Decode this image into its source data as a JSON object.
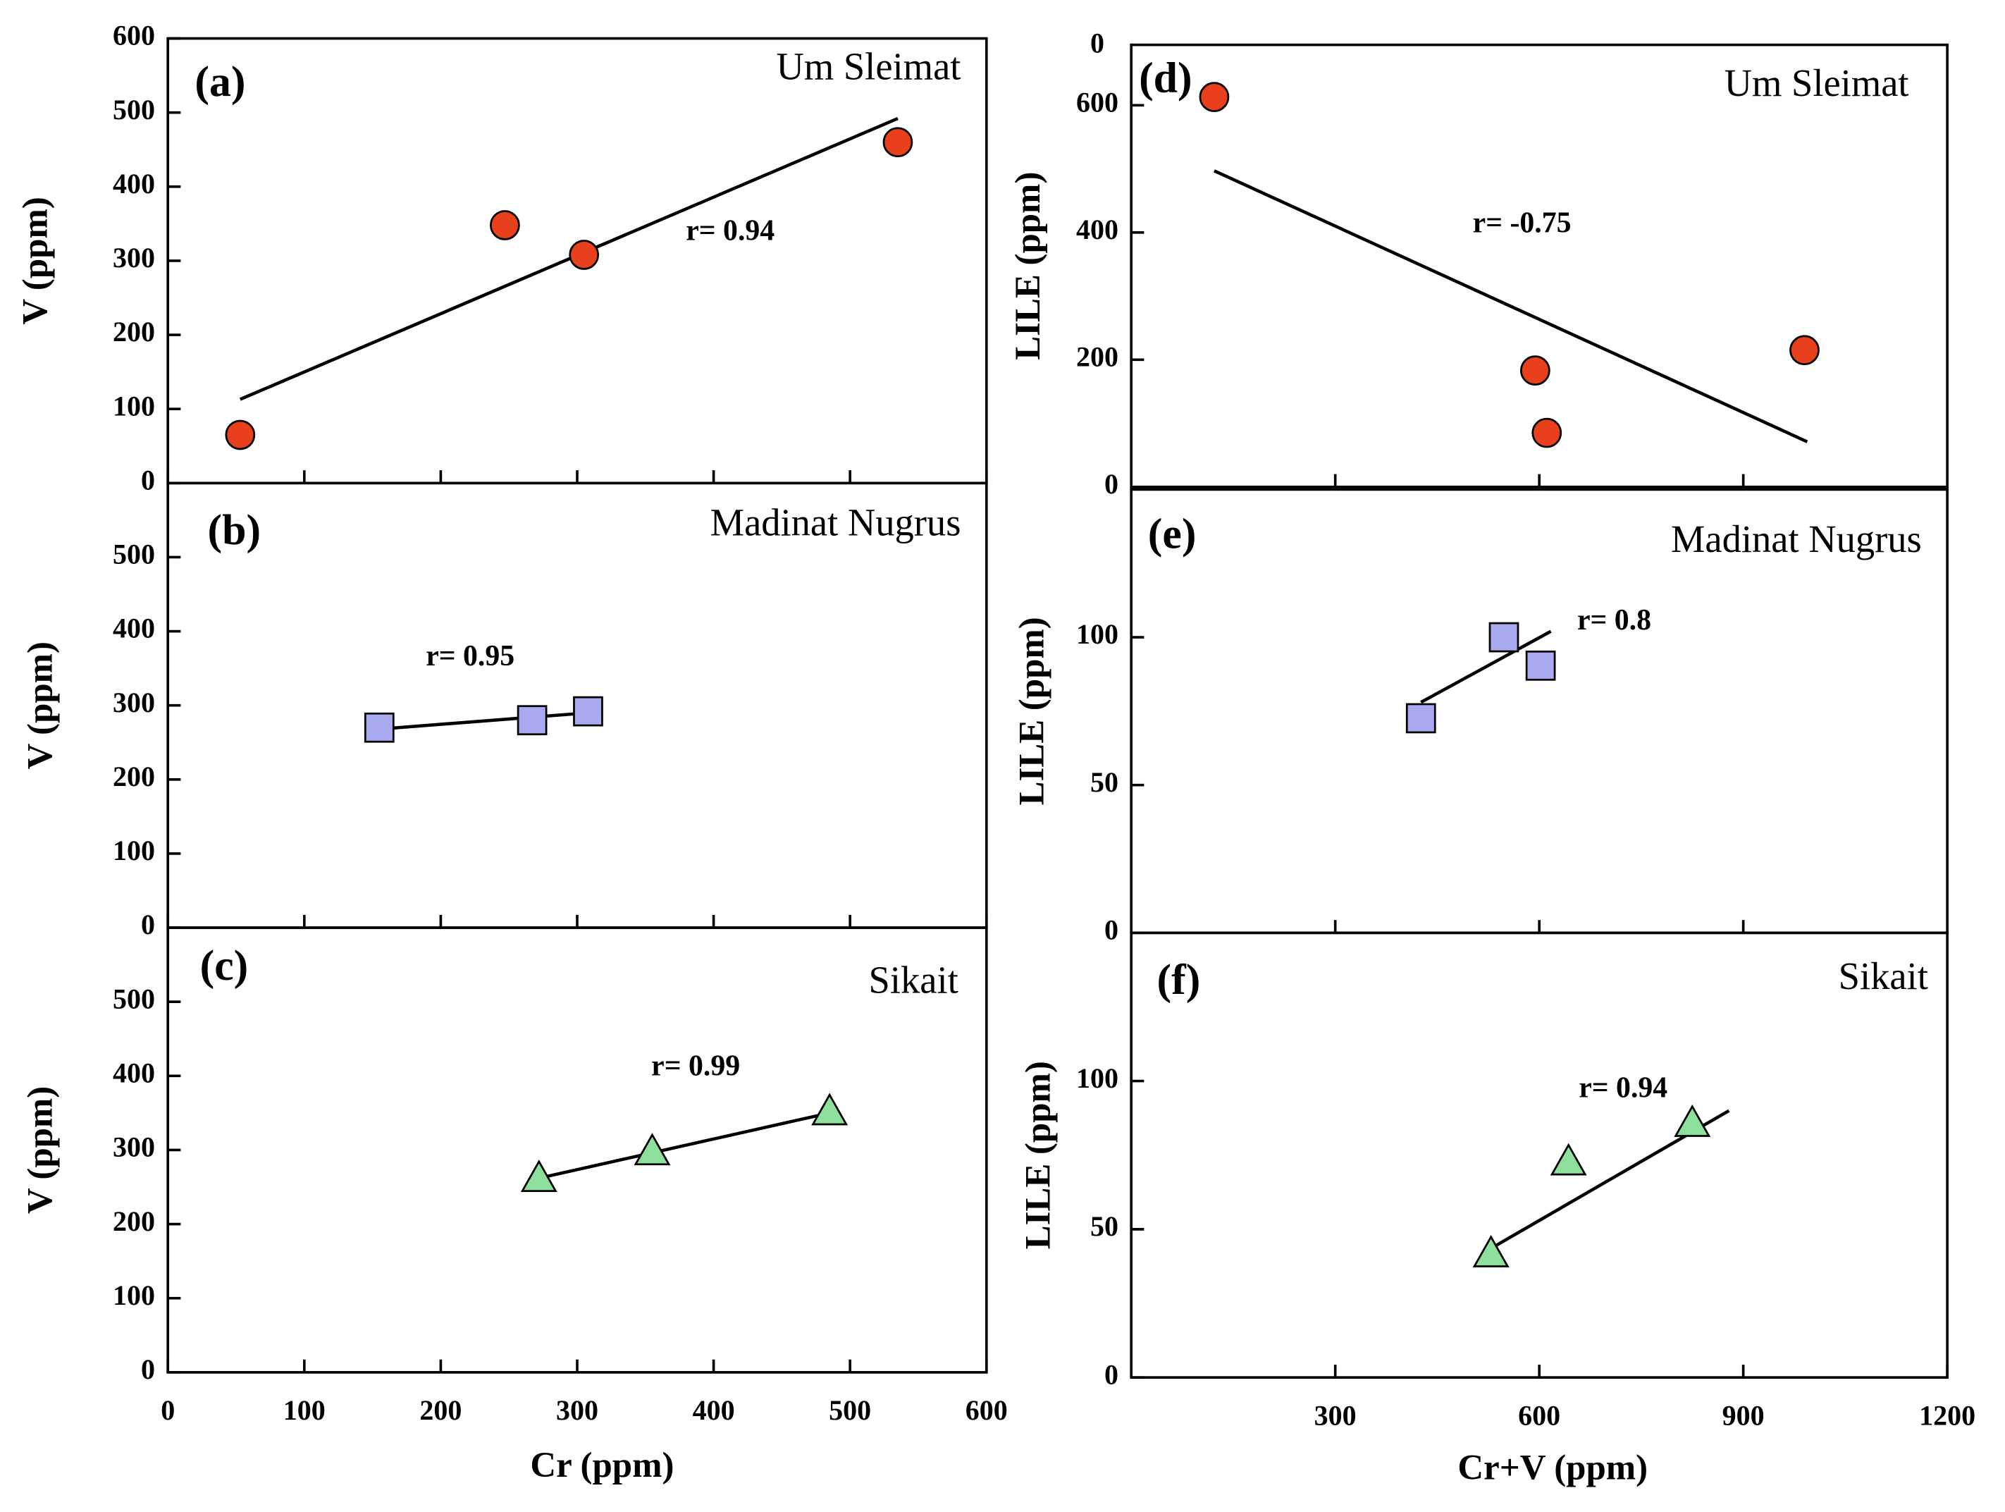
{
  "chart_data": [
    {
      "type": "scatter",
      "label": "(a)",
      "title": "Um Sleimat",
      "annotation": "r= 0.94",
      "ylabel": "V (ppm)",
      "x": [
        53,
        247,
        305,
        535
      ],
      "y": [
        65,
        348,
        308,
        460
      ],
      "trendline": {
        "x": [
          53,
          535
        ],
        "y": [
          113,
          492
        ]
      },
      "xlim": [
        0,
        600
      ],
      "ylim": [
        0,
        600
      ],
      "xticks": [
        0,
        100,
        200,
        300,
        400,
        500,
        600
      ],
      "yticks": [
        0,
        100,
        200,
        300,
        400,
        500,
        600
      ],
      "show_xtick_labels": false,
      "color": "#e8401c",
      "marker": "circle"
    },
    {
      "type": "scatter",
      "label": "(b)",
      "title": "Madinat Nugrus",
      "annotation": "r= 0.95",
      "ylabel": "V (ppm)",
      "x": [
        155,
        267,
        308
      ],
      "y": [
        270,
        280,
        292
      ],
      "trendline": {
        "x": [
          155,
          308
        ],
        "y": [
          268,
          290
        ]
      },
      "xlim": [
        0,
        600
      ],
      "ylim": [
        0,
        600
      ],
      "xticks": [
        0,
        100,
        200,
        300,
        400,
        500,
        600
      ],
      "yticks": [
        0,
        100,
        200,
        300,
        400,
        500
      ],
      "show_xtick_labels": false,
      "color": "#a9a9ef",
      "marker": "square"
    },
    {
      "type": "scatter",
      "label": "(c)",
      "title": "Sikait",
      "annotation": "r= 0.99",
      "ylabel": "V (ppm)",
      "xlabel": "Cr (ppm)",
      "x": [
        272,
        355,
        485
      ],
      "y": [
        262,
        298,
        352
      ],
      "trendline": {
        "x": [
          272,
          485
        ],
        "y": [
          262,
          350
        ]
      },
      "xlim": [
        0,
        600
      ],
      "ylim": [
        0,
        600
      ],
      "xticks": [
        0,
        100,
        200,
        300,
        400,
        500,
        600
      ],
      "yticks": [
        0,
        100,
        200,
        300,
        400,
        500
      ],
      "show_xtick_labels": true,
      "color": "#8fdf9c",
      "marker": "triangle"
    },
    {
      "type": "scatter",
      "label": "(d)",
      "title": "Um Sleimat",
      "annotation": "r= -0.75",
      "ylabel": "LILE (ppm)",
      "corner_label": "0",
      "x": [
        122,
        594,
        611,
        990
      ],
      "y": [
        613,
        183,
        85,
        215
      ],
      "trendline": {
        "x": [
          122,
          994
        ],
        "y": [
          497,
          71
        ]
      },
      "xlim": [
        0,
        1200
      ],
      "ylim": [
        0,
        695
      ],
      "xticks": [
        300,
        600,
        900
      ],
      "yticks": [
        0,
        200,
        400,
        600
      ],
      "show_xtick_labels": false,
      "color": "#e8401c",
      "marker": "circle"
    },
    {
      "type": "scatter",
      "label": "(e)",
      "title": "Madinat Nugrus",
      "annotation": "r= 0.8",
      "ylabel": "LILE (ppm)",
      "x": [
        426,
        548,
        602
      ],
      "y": [
        72.6,
        100,
        90.4
      ],
      "trendline": {
        "x": [
          426,
          617
        ],
        "y": [
          78,
          102
        ]
      },
      "xlim": [
        0,
        1200
      ],
      "ylim": [
        0,
        150
      ],
      "xticks": [
        300,
        600,
        900
      ],
      "yticks": [
        0,
        50,
        100
      ],
      "show_xtick_labels": false,
      "color": "#a9a9ef",
      "marker": "square"
    },
    {
      "type": "scatter",
      "label": "(f)",
      "title": "Sikait",
      "annotation": "r= 0.94",
      "ylabel": "LILE (ppm)",
      "xlabel": "Cr+V (ppm)",
      "x": [
        529,
        643,
        825
      ],
      "y": [
        41.8,
        72.8,
        85.8
      ],
      "trendline": {
        "x": [
          525,
          879
        ],
        "y": [
          43,
          90
        ]
      },
      "xlim": [
        0,
        1200
      ],
      "ylim": [
        0,
        150
      ],
      "xticks": [
        300,
        600,
        900,
        1200
      ],
      "yticks": [
        0,
        50,
        100
      ],
      "show_xtick_labels": true,
      "color": "#8fdf9c",
      "marker": "triangle"
    }
  ]
}
